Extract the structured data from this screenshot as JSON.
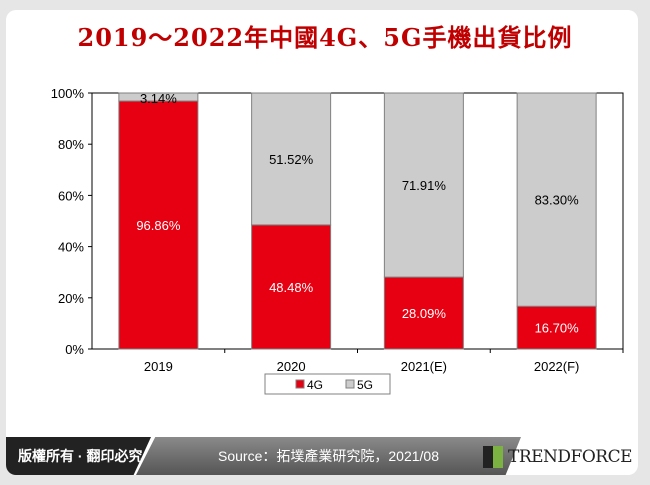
{
  "title": "2019～2022年中國4G、5G手機出貨比例",
  "footer": {
    "copyright": "版權所有 · 翻印必究",
    "source": "Source：拓墣產業研究院，2021/08",
    "logo": "TRENDFORCE"
  },
  "colors": {
    "4G": "#e60012",
    "5G": "#cccccc",
    "title": "#c00000"
  },
  "chart_data": {
    "type": "bar",
    "stacked": true,
    "title": "2019～2022年中國4G、5G手機出貨比例",
    "categories": [
      "2019",
      "2020",
      "2021(E)",
      "2022(F)"
    ],
    "series": [
      {
        "name": "4G",
        "values": [
          96.86,
          48.48,
          28.09,
          16.7
        ],
        "labels": [
          "96.86%",
          "48.48%",
          "28.09%",
          "16.70%"
        ]
      },
      {
        "name": "5G",
        "values": [
          3.14,
          51.52,
          71.91,
          83.3
        ],
        "labels": [
          "3.14%",
          "51.52%",
          "71.91%",
          "83.30%"
        ]
      }
    ],
    "yticks": [
      "0%",
      "20%",
      "40%",
      "60%",
      "80%",
      "100%"
    ],
    "ylim": [
      0,
      100
    ],
    "legend": "bottom"
  }
}
